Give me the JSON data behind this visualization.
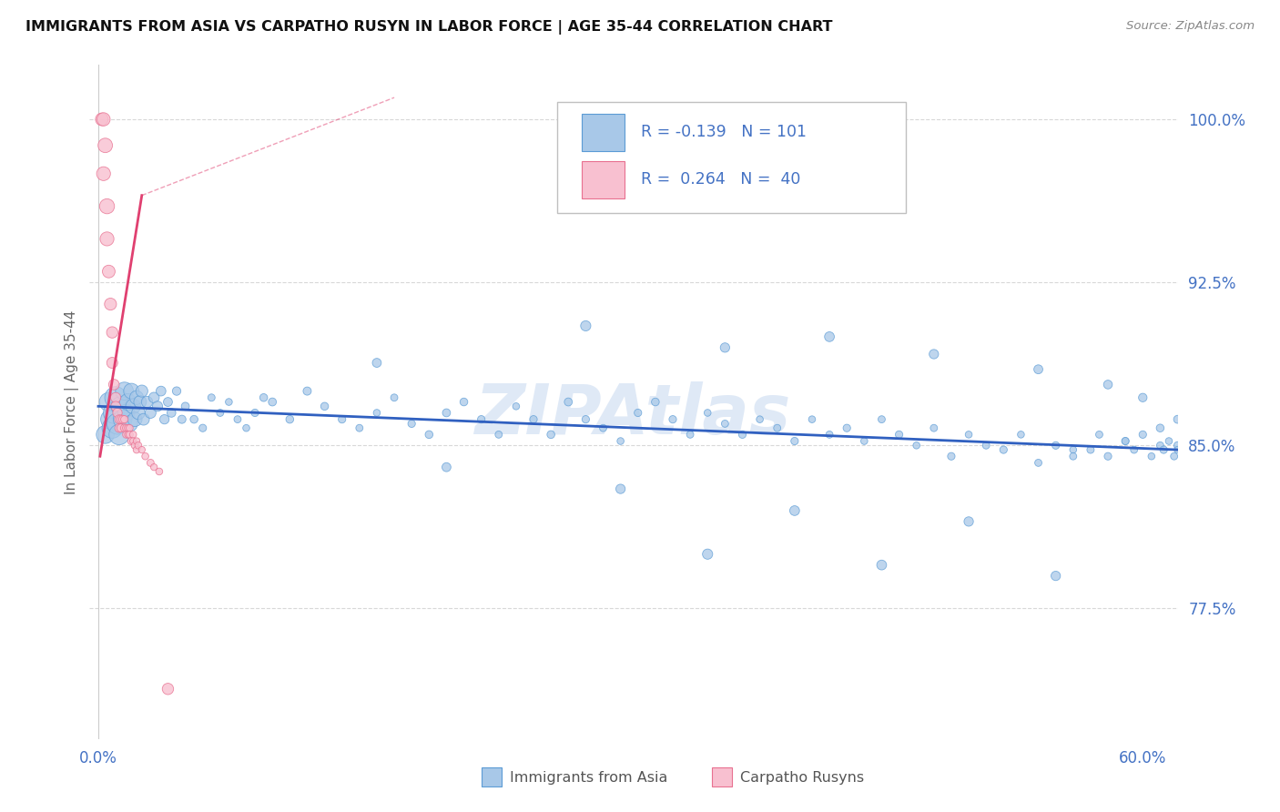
{
  "title": "IMMIGRANTS FROM ASIA VS CARPATHO RUSYN IN LABOR FORCE | AGE 35-44 CORRELATION CHART",
  "source": "Source: ZipAtlas.com",
  "ylabel": "In Labor Force | Age 35-44",
  "xlim": [
    -0.005,
    0.62
  ],
  "ylim": [
    0.715,
    1.025
  ],
  "yticks": [
    0.775,
    0.85,
    0.925,
    1.0
  ],
  "ytick_labels": [
    "77.5%",
    "85.0%",
    "92.5%",
    "100.0%"
  ],
  "xticks": [
    0.0,
    0.1,
    0.2,
    0.3,
    0.4,
    0.5,
    0.6
  ],
  "xtick_labels": [
    "0.0%",
    "",
    "",
    "",
    "",
    "",
    "60.0%"
  ],
  "blue_color": "#a8c8e8",
  "blue_edge": "#5b9bd5",
  "pink_color": "#f8c0d0",
  "pink_edge": "#e87090",
  "trend_blue": "#3060c0",
  "trend_pink": "#e04070",
  "axis_color": "#4472c4",
  "grid_color": "#d8d8d8",
  "watermark": "ZIPAtlas",
  "watermark_color": "#c0d4ee",
  "blue_x": [
    0.004,
    0.006,
    0.007,
    0.008,
    0.009,
    0.01,
    0.011,
    0.012,
    0.013,
    0.014,
    0.015,
    0.016,
    0.017,
    0.018,
    0.019,
    0.02,
    0.021,
    0.022,
    0.023,
    0.024,
    0.025,
    0.026,
    0.028,
    0.03,
    0.032,
    0.034,
    0.036,
    0.038,
    0.04,
    0.042,
    0.045,
    0.048,
    0.05,
    0.055,
    0.06,
    0.065,
    0.07,
    0.075,
    0.08,
    0.085,
    0.09,
    0.095,
    0.1,
    0.11,
    0.12,
    0.13,
    0.14,
    0.15,
    0.16,
    0.17,
    0.18,
    0.19,
    0.2,
    0.21,
    0.22,
    0.23,
    0.24,
    0.25,
    0.26,
    0.27,
    0.28,
    0.29,
    0.3,
    0.31,
    0.32,
    0.33,
    0.34,
    0.35,
    0.36,
    0.37,
    0.38,
    0.39,
    0.4,
    0.41,
    0.42,
    0.43,
    0.44,
    0.45,
    0.46,
    0.47,
    0.48,
    0.49,
    0.5,
    0.51,
    0.52,
    0.53,
    0.54,
    0.55,
    0.56,
    0.575,
    0.58,
    0.59,
    0.595,
    0.6,
    0.605,
    0.61,
    0.612,
    0.615,
    0.618,
    0.62,
    0.62
  ],
  "blue_y": [
    0.855,
    0.87,
    0.862,
    0.858,
    0.865,
    0.872,
    0.86,
    0.855,
    0.868,
    0.862,
    0.875,
    0.865,
    0.87,
    0.86,
    0.875,
    0.868,
    0.862,
    0.872,
    0.865,
    0.87,
    0.875,
    0.862,
    0.87,
    0.865,
    0.872,
    0.868,
    0.875,
    0.862,
    0.87,
    0.865,
    0.875,
    0.862,
    0.868,
    0.862,
    0.858,
    0.872,
    0.865,
    0.87,
    0.862,
    0.858,
    0.865,
    0.872,
    0.87,
    0.862,
    0.875,
    0.868,
    0.862,
    0.858,
    0.865,
    0.872,
    0.86,
    0.855,
    0.865,
    0.87,
    0.862,
    0.855,
    0.868,
    0.862,
    0.855,
    0.87,
    0.862,
    0.858,
    0.852,
    0.865,
    0.87,
    0.862,
    0.855,
    0.865,
    0.86,
    0.855,
    0.862,
    0.858,
    0.852,
    0.862,
    0.855,
    0.858,
    0.852,
    0.862,
    0.855,
    0.85,
    0.858,
    0.845,
    0.855,
    0.85,
    0.848,
    0.855,
    0.842,
    0.85,
    0.848,
    0.855,
    0.845,
    0.852,
    0.848,
    0.855,
    0.845,
    0.85,
    0.848,
    0.852,
    0.845,
    0.85,
    0.848
  ],
  "blue_s": [
    200,
    220,
    240,
    260,
    280,
    300,
    280,
    260,
    240,
    220,
    200,
    180,
    170,
    160,
    150,
    140,
    130,
    120,
    110,
    100,
    90,
    85,
    80,
    75,
    70,
    65,
    60,
    55,
    50,
    48,
    45,
    42,
    40,
    38,
    35,
    33,
    32,
    30,
    32,
    30,
    35,
    38,
    40,
    38,
    42,
    38,
    35,
    32,
    30,
    32,
    35,
    38,
    40,
    38,
    35,
    32,
    30,
    35,
    38,
    40,
    35,
    32,
    30,
    35,
    38,
    35,
    32,
    30,
    32,
    35,
    30,
    32,
    35,
    30,
    32,
    35,
    30,
    32,
    35,
    30,
    32,
    35,
    30,
    32,
    35,
    30,
    32,
    35,
    30,
    32,
    35,
    30,
    32,
    35,
    30,
    32,
    35,
    30,
    32,
    35,
    30
  ],
  "blue_extra_x": [
    0.16,
    0.28,
    0.36,
    0.42,
    0.48,
    0.54,
    0.58,
    0.6,
    0.2,
    0.3,
    0.4,
    0.5,
    0.35,
    0.45,
    0.55,
    0.62,
    0.61,
    0.59,
    0.57,
    0.56
  ],
  "blue_extra_y": [
    0.888,
    0.905,
    0.895,
    0.9,
    0.892,
    0.885,
    0.878,
    0.872,
    0.84,
    0.83,
    0.82,
    0.815,
    0.8,
    0.795,
    0.79,
    0.862,
    0.858,
    0.852,
    0.848,
    0.845
  ],
  "blue_extra_s": [
    50,
    65,
    55,
    60,
    55,
    50,
    48,
    45,
    50,
    55,
    60,
    55,
    65,
    60,
    55,
    40,
    38,
    35,
    33,
    32
  ],
  "pink_x": [
    0.002,
    0.003,
    0.003,
    0.004,
    0.005,
    0.005,
    0.006,
    0.007,
    0.008,
    0.008,
    0.009,
    0.01,
    0.01,
    0.011,
    0.012,
    0.012,
    0.013,
    0.013,
    0.014,
    0.015,
    0.015,
    0.016,
    0.016,
    0.017,
    0.017,
    0.018,
    0.018,
    0.019,
    0.02,
    0.02,
    0.021,
    0.022,
    0.022,
    0.023,
    0.025,
    0.027,
    0.03,
    0.032,
    0.035,
    0.04
  ],
  "pink_y": [
    1.0,
    1.0,
    0.975,
    0.988,
    0.96,
    0.945,
    0.93,
    0.915,
    0.902,
    0.888,
    0.878,
    0.872,
    0.868,
    0.865,
    0.862,
    0.858,
    0.862,
    0.858,
    0.862,
    0.858,
    0.862,
    0.858,
    0.855,
    0.858,
    0.855,
    0.858,
    0.855,
    0.852,
    0.855,
    0.852,
    0.85,
    0.848,
    0.852,
    0.85,
    0.848,
    0.845,
    0.842,
    0.84,
    0.838,
    0.738
  ],
  "pink_s": [
    100,
    110,
    120,
    130,
    140,
    120,
    100,
    90,
    80,
    75,
    70,
    65,
    60,
    55,
    50,
    48,
    45,
    42,
    40,
    38,
    35,
    33,
    32,
    30,
    28,
    30,
    32,
    35,
    30,
    28,
    32,
    30,
    28,
    30,
    28,
    30,
    32,
    28,
    30,
    80
  ],
  "blue_trend_x": [
    0.0,
    0.62
  ],
  "blue_trend_y": [
    0.868,
    0.848
  ],
  "pink_trend_x": [
    0.001,
    0.17
  ],
  "pink_trend_y": [
    0.845,
    1.01
  ]
}
